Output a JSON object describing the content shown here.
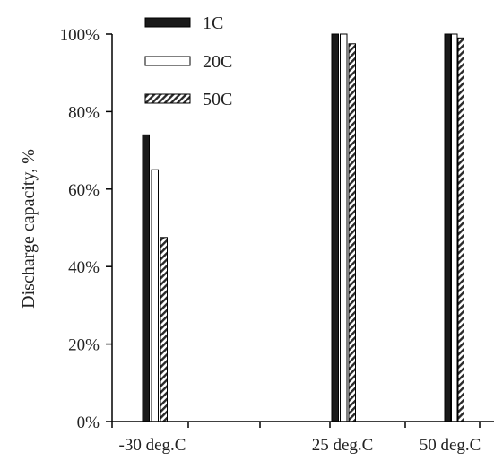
{
  "chart_data": {
    "type": "bar",
    "title": "",
    "xlabel": "",
    "ylabel": "Discharge capacity, %",
    "ylim": [
      0,
      100
    ],
    "yticks": [
      0,
      20,
      40,
      60,
      80,
      100
    ],
    "ytick_labels": [
      "0%",
      "20%",
      "40%",
      "60%",
      "80%",
      "100%"
    ],
    "categories": [
      "-30 deg.C",
      "25 deg.C",
      "50 deg.C"
    ],
    "series": [
      {
        "name": "1C",
        "values": [
          74,
          100,
          100
        ],
        "fill": "#1a1a1a"
      },
      {
        "name": "20C",
        "values": [
          65,
          100,
          100
        ],
        "fill": "#ffffff"
      },
      {
        "name": "50C",
        "values": [
          47.5,
          97.5,
          99
        ],
        "fill": "hatch"
      }
    ],
    "legend_position": "top-left",
    "grid": false
  }
}
